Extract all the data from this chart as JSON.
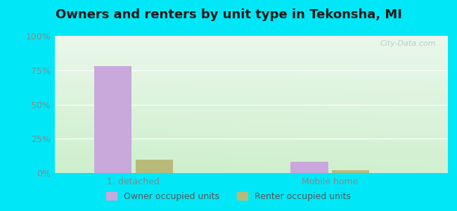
{
  "title": "Owners and renters by unit type in Tekonsha, MI",
  "categories": [
    "1, detached",
    "Mobile home"
  ],
  "owner_values": [
    78,
    8
  ],
  "renter_values": [
    10,
    2
  ],
  "owner_color": "#c9a8dc",
  "renter_color": "#b8ba7a",
  "background_outer": "#00e8f8",
  "yticks": [
    0,
    25,
    50,
    75,
    100
  ],
  "ytick_labels": [
    "0%",
    "25%",
    "50%",
    "75%",
    "100%"
  ],
  "ylim": [
    0,
    100
  ],
  "bar_width": 0.38,
  "group_positions": [
    1.0,
    3.0
  ],
  "xlim": [
    0.2,
    4.2
  ],
  "legend_owner": "Owner occupied units",
  "legend_renter": "Renter occupied units",
  "watermark": "City-Data.com",
  "title_fontsize": 13,
  "axis_fontsize": 9,
  "tick_color": "#888888",
  "grid_color": "#d8e8d8"
}
